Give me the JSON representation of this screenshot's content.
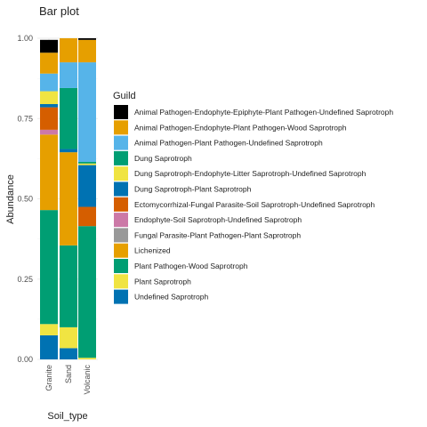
{
  "chart_data": {
    "type": "bar",
    "stacked": true,
    "title": "Bar plot",
    "xlabel": "Soil_type",
    "ylabel": "Abundance",
    "ylim": [
      0,
      1
    ],
    "y_ticks": [
      "0.00",
      "0.25",
      "0.50",
      "0.75",
      "1.00"
    ],
    "categories": [
      "Granite",
      "Sand",
      "Volcanic"
    ],
    "legend_title": "Guild",
    "legend_position": "right",
    "grid": true,
    "series": [
      {
        "name": "Undefined Saprotroph",
        "color": "#0072B2",
        "values": [
          0.075,
          0.035,
          0.0
        ]
      },
      {
        "name": "Plant Saprotroph",
        "color": "#F0E442",
        "values": [
          0.035,
          0.065,
          0.005
        ]
      },
      {
        "name": "Plant Pathogen-Wood Saprotroph",
        "color": "#009E73",
        "values": [
          0.355,
          0.255,
          0.41
        ]
      },
      {
        "name": "Lichenized",
        "color": "#E69F00",
        "values": [
          0.235,
          0.29,
          0.0
        ]
      },
      {
        "name": "Fungal Parasite-Plant Pathogen-Plant Saprotroph",
        "color": "#999999",
        "values": [
          0.0,
          0.0,
          0.0
        ]
      },
      {
        "name": "Endophyte-Soil Saprotroph-Undefined Saprotroph",
        "color": "#CC79A7",
        "values": [
          0.015,
          0.0,
          0.0
        ]
      },
      {
        "name": "Ectomycorrhizal-Fungal Parasite-Soil Saprotroph-Undefined Saprotroph",
        "color": "#D55E00",
        "values": [
          0.07,
          0.0,
          0.06
        ]
      },
      {
        "name": "Dung Saprotroph-Plant Saprotroph",
        "color": "#0072B2",
        "values": [
          0.01,
          0.01,
          0.13
        ]
      },
      {
        "name": "Dung Saprotroph-Endophyte-Litter Saprotroph-Undefined Saprotroph",
        "color": "#F0E442",
        "values": [
          0.04,
          0.0,
          0.005
        ]
      },
      {
        "name": "Dung Saprotroph",
        "color": "#009E73",
        "values": [
          0.0,
          0.19,
          0.005
        ]
      },
      {
        "name": "Animal Pathogen-Plant Pathogen-Undefined Saprotroph",
        "color": "#56B4E9",
        "values": [
          0.055,
          0.08,
          0.31
        ]
      },
      {
        "name": "Animal Pathogen-Endophyte-Plant Pathogen-Wood Saprotroph",
        "color": "#E69F00",
        "values": [
          0.065,
          0.075,
          0.07
        ]
      },
      {
        "name": "Animal Pathogen-Endophyte-Epiphyte-Plant Pathogen-Undefined Saprotroph",
        "color": "#000000",
        "values": [
          0.04,
          0.0,
          0.005
        ]
      }
    ],
    "legend_order": [
      "Animal Pathogen-Endophyte-Epiphyte-Plant Pathogen-Undefined Saprotroph",
      "Animal Pathogen-Endophyte-Plant Pathogen-Wood Saprotroph",
      "Animal Pathogen-Plant Pathogen-Undefined Saprotroph",
      "Dung Saprotroph",
      "Dung Saprotroph-Endophyte-Litter Saprotroph-Undefined Saprotroph",
      "Dung Saprotroph-Plant Saprotroph",
      "Ectomycorrhizal-Fungal Parasite-Soil Saprotroph-Undefined Saprotroph",
      "Endophyte-Soil Saprotroph-Undefined Saprotroph",
      "Fungal Parasite-Plant Pathogen-Plant Saprotroph",
      "Lichenized",
      "Plant Pathogen-Wood Saprotroph",
      "Plant Saprotroph",
      "Undefined Saprotroph"
    ]
  }
}
